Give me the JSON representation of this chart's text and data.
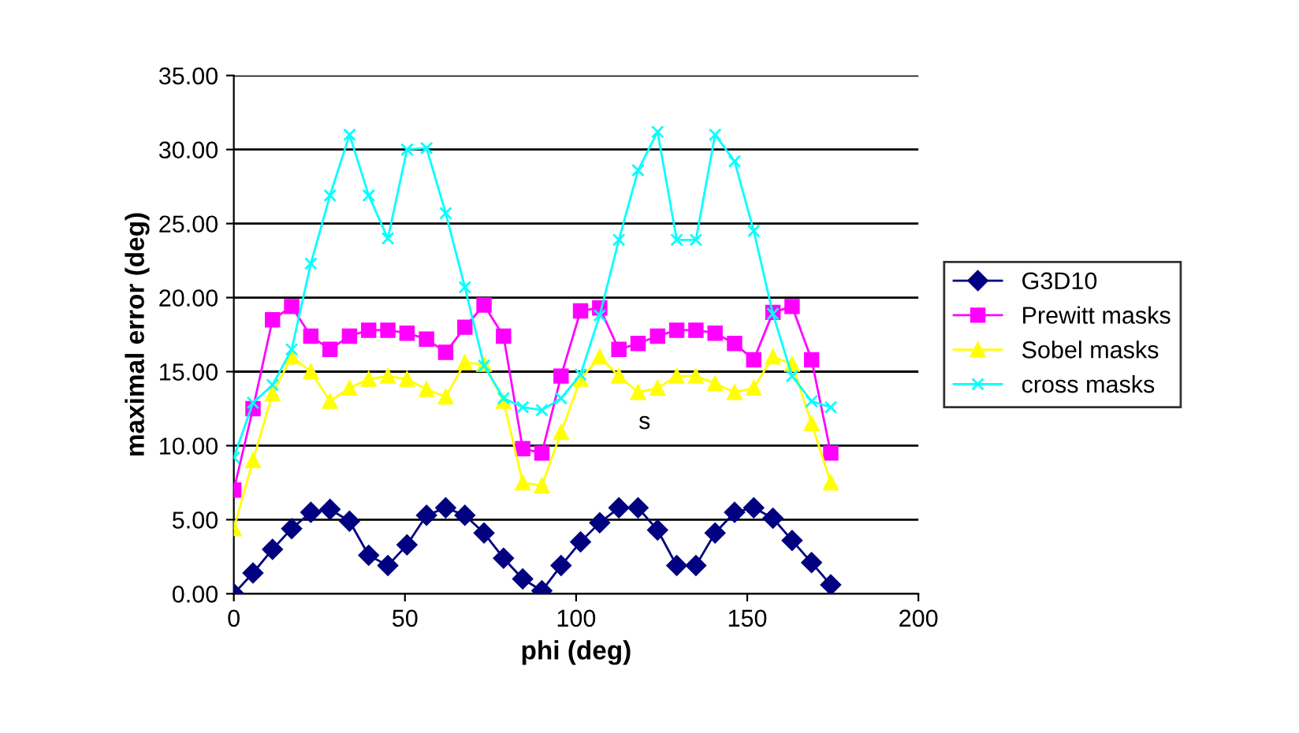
{
  "chart_data": {
    "type": "line",
    "xlabel": "phi (deg)",
    "ylabel": "maximal error (deg)",
    "x": [
      0,
      5.6,
      11.3,
      16.9,
      22.5,
      28.1,
      33.8,
      39.4,
      45,
      50.6,
      56.3,
      61.9,
      67.5,
      73.1,
      78.8,
      84.4,
      90,
      95.6,
      101.3,
      106.9,
      112.5,
      118.1,
      123.8,
      129.4,
      135,
      140.6,
      146.3,
      151.9,
      157.5,
      163.1,
      168.8,
      174.4
    ],
    "series": [
      {
        "name": "G3D10",
        "color": "#000080",
        "marker": "diamond",
        "values": [
          0,
          1.4,
          3.0,
          4.4,
          5.5,
          5.7,
          4.9,
          2.6,
          1.9,
          3.3,
          5.3,
          5.8,
          5.3,
          4.1,
          2.4,
          1.0,
          0.2,
          1.9,
          3.5,
          4.8,
          5.8,
          5.8,
          4.3,
          1.9,
          1.9,
          4.1,
          5.5,
          5.8,
          5.1,
          3.6,
          2.1,
          0.6
        ]
      },
      {
        "name": "Prewitt masks",
        "color": "#ff00ff",
        "marker": "square",
        "values": [
          7.0,
          12.5,
          18.5,
          19.4,
          17.4,
          16.5,
          17.4,
          17.8,
          17.8,
          17.6,
          17.2,
          16.3,
          18.0,
          19.5,
          17.4,
          9.8,
          9.5,
          14.7,
          19.1,
          19.3,
          16.5,
          16.9,
          17.4,
          17.8,
          17.8,
          17.6,
          16.9,
          15.8,
          19.0,
          19.4,
          15.8,
          9.5
        ]
      },
      {
        "name": "Sobel masks",
        "color": "#ffff00",
        "marker": "triangle",
        "values": [
          4.4,
          9.0,
          13.5,
          16.0,
          15.0,
          13.0,
          13.9,
          14.5,
          14.7,
          14.5,
          13.8,
          13.3,
          15.6,
          15.5,
          13.0,
          7.5,
          7.3,
          10.9,
          14.5,
          16.0,
          14.7,
          13.6,
          13.9,
          14.7,
          14.7,
          14.2,
          13.6,
          13.9,
          16.0,
          15.5,
          11.5,
          7.5
        ]
      },
      {
        "name": "cross masks",
        "color": "#00ffff",
        "marker": "cross",
        "values": [
          9.2,
          12.9,
          14.1,
          16.5,
          22.3,
          26.9,
          31.0,
          26.9,
          24.0,
          30.0,
          30.1,
          25.7,
          20.7,
          15.4,
          13.2,
          12.6,
          12.4,
          13.2,
          14.8,
          18.8,
          23.9,
          28.6,
          31.2,
          23.9,
          23.9,
          31.0,
          29.2,
          24.5,
          18.9,
          14.7,
          13.0,
          12.6
        ]
      }
    ],
    "xlim": [
      0,
      200
    ],
    "xticks": [
      0,
      50,
      100,
      150,
      200
    ],
    "ylim": [
      0,
      35
    ],
    "yticks": [
      {
        "value": 0,
        "label": "0.00"
      },
      {
        "value": 5,
        "label": "5.00"
      },
      {
        "value": 10,
        "label": "10.00"
      },
      {
        "value": 15,
        "label": "15.00"
      },
      {
        "value": 20,
        "label": "20.00"
      },
      {
        "value": 25,
        "label": "25.00"
      },
      {
        "value": 30,
        "label": "30.00"
      },
      {
        "value": 35,
        "label": "35.00"
      }
    ],
    "grid": "y",
    "legend": "right",
    "annotations": [
      "s"
    ]
  }
}
